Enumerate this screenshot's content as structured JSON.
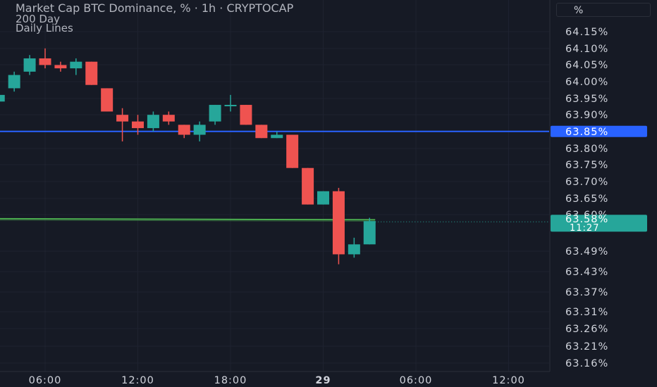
{
  "header": {
    "title": "Market Cap BTC Dominance, % · 1h · CRYPTOCAP",
    "indicators": [
      "200 Day",
      "Daily Lines"
    ],
    "unit_button": "%"
  },
  "colors": {
    "background": "#161a25",
    "grid": "#1f2330",
    "up": "#26a69a",
    "down": "#ef5350",
    "blue_line": "#2962ff",
    "green_line": "#4caf50",
    "axis_text": "#d1d4dc"
  },
  "chart_data": {
    "type": "candlestick",
    "x_tick_labels": [
      "06:00",
      "12:00",
      "18:00",
      "29",
      "06:00",
      "12:00"
    ],
    "y_tick_labels": [
      "64.15%",
      "64.10%",
      "64.05%",
      "64.00%",
      "63.95%",
      "63.90%",
      "63.80%",
      "63.75%",
      "63.70%",
      "63.65%",
      "63.60%",
      "63.49%",
      "63.43%",
      "63.37%",
      "63.31%",
      "63.26%",
      "63.21%",
      "63.16%"
    ],
    "x_ticks_hours": [
      6,
      12,
      18,
      24,
      30,
      36
    ],
    "y_ticks": [
      64.15,
      64.1,
      64.05,
      64.0,
      63.95,
      63.9,
      63.8,
      63.75,
      63.7,
      63.65,
      63.6,
      63.49,
      63.43,
      63.37,
      63.31,
      63.26,
      63.21,
      63.16
    ],
    "candles": [
      {
        "t": 3,
        "o": 63.94,
        "h": 63.99,
        "l": 63.94,
        "c": 63.96
      },
      {
        "t": 4,
        "o": 63.98,
        "h": 64.03,
        "l": 63.97,
        "c": 64.02
      },
      {
        "t": 5,
        "o": 64.03,
        "h": 64.08,
        "l": 64.02,
        "c": 64.07
      },
      {
        "t": 6,
        "o": 64.07,
        "h": 64.1,
        "l": 64.04,
        "c": 64.05
      },
      {
        "t": 7,
        "o": 64.05,
        "h": 64.06,
        "l": 64.03,
        "c": 64.04
      },
      {
        "t": 8,
        "o": 64.04,
        "h": 64.07,
        "l": 64.02,
        "c": 64.06
      },
      {
        "t": 9,
        "o": 64.06,
        "h": 64.06,
        "l": 63.99,
        "c": 63.99
      },
      {
        "t": 10,
        "o": 63.98,
        "h": 63.98,
        "l": 63.91,
        "c": 63.91
      },
      {
        "t": 11,
        "o": 63.9,
        "h": 63.92,
        "l": 63.82,
        "c": 63.88
      },
      {
        "t": 12,
        "o": 63.88,
        "h": 63.9,
        "l": 63.84,
        "c": 63.86
      },
      {
        "t": 13,
        "o": 63.86,
        "h": 63.91,
        "l": 63.85,
        "c": 63.9
      },
      {
        "t": 14,
        "o": 63.9,
        "h": 63.91,
        "l": 63.87,
        "c": 63.88
      },
      {
        "t": 15,
        "o": 63.87,
        "h": 63.87,
        "l": 63.83,
        "c": 63.84
      },
      {
        "t": 16,
        "o": 63.84,
        "h": 63.88,
        "l": 63.82,
        "c": 63.87
      },
      {
        "t": 17,
        "o": 63.88,
        "h": 63.93,
        "l": 63.87,
        "c": 63.93
      },
      {
        "t": 18,
        "o": 63.93,
        "h": 63.96,
        "l": 63.91,
        "c": 63.93
      },
      {
        "t": 19,
        "o": 63.93,
        "h": 63.93,
        "l": 63.87,
        "c": 63.87
      },
      {
        "t": 20,
        "o": 63.87,
        "h": 63.87,
        "l": 63.83,
        "c": 63.83
      },
      {
        "t": 21,
        "o": 63.83,
        "h": 63.85,
        "l": 63.83,
        "c": 63.84
      },
      {
        "t": 22,
        "o": 63.84,
        "h": 63.84,
        "l": 63.74,
        "c": 63.74
      },
      {
        "t": 23,
        "o": 63.74,
        "h": 63.74,
        "l": 63.63,
        "c": 63.63
      },
      {
        "t": 24,
        "o": 63.63,
        "h": 63.67,
        "l": 63.63,
        "c": 63.67
      },
      {
        "t": 25,
        "o": 63.67,
        "h": 63.68,
        "l": 63.45,
        "c": 63.48
      },
      {
        "t": 26,
        "o": 63.48,
        "h": 63.53,
        "l": 63.47,
        "c": 63.51
      },
      {
        "t": 27,
        "o": 63.51,
        "h": 63.59,
        "l": 63.51,
        "c": 63.58
      }
    ],
    "hlines": [
      {
        "name": "Daily Lines",
        "value": 63.85,
        "label": "63.85%"
      }
    ],
    "ma_line": {
      "name": "200 Day",
      "value_start": 63.587,
      "value_end": 63.584
    },
    "last_price": {
      "value": 63.58,
      "label": "63.58%",
      "countdown": "11:27"
    }
  }
}
